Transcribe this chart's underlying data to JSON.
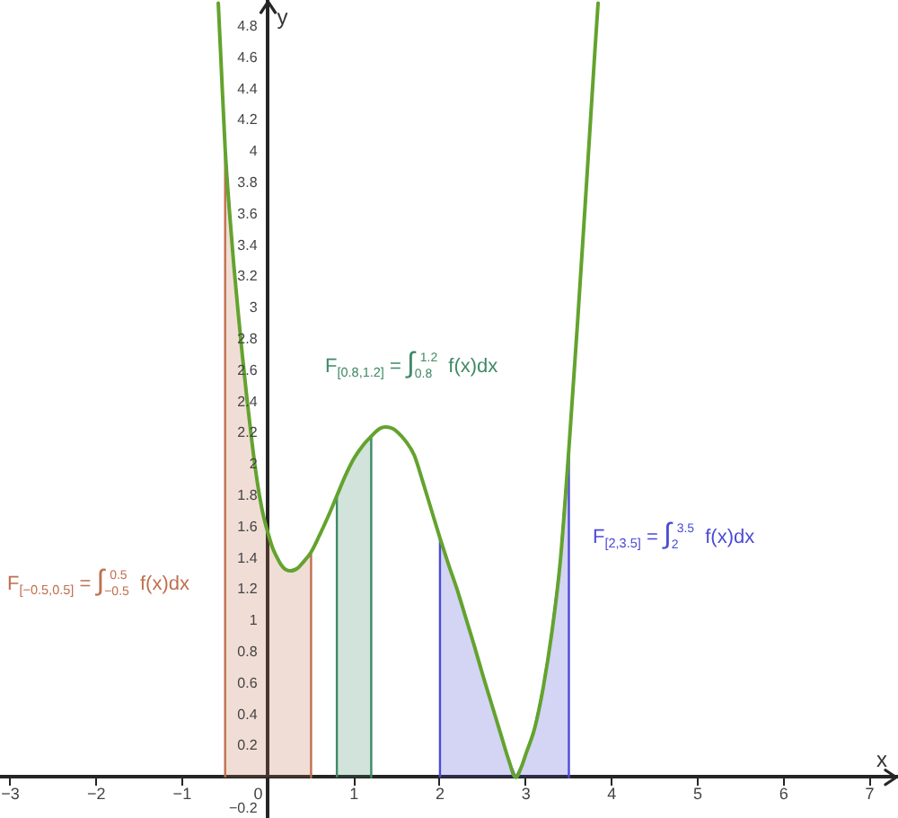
{
  "chart_data": {
    "type": "line",
    "xlabel": "x",
    "ylabel": "y",
    "xlim": [
      -3.12,
      7.33
    ],
    "ylim": [
      -0.26,
      4.97
    ],
    "xticks": [
      {
        "value": -3,
        "label": "−3"
      },
      {
        "value": -2,
        "label": "−2"
      },
      {
        "value": -1,
        "label": "−1"
      },
      0,
      1,
      2,
      3,
      4,
      5,
      6,
      7
    ],
    "yticks": [
      {
        "value": -0.2,
        "label": "−0.2"
      },
      0.2,
      0.4,
      0.6,
      0.8,
      1,
      1.2,
      1.4,
      1.6,
      1.8,
      2,
      2.2,
      2.4,
      2.6,
      2.8,
      3,
      3.2,
      3.4,
      3.6,
      3.8,
      4,
      4.2,
      4.4,
      4.6,
      4.8
    ],
    "series": [
      {
        "type": "area",
        "color": "#c0704f",
        "x": [
          -0.5,
          -0.5,
          -0.45,
          -0.4,
          -0.35,
          -0.3,
          -0.25,
          -0.2,
          -0.15,
          -0.1,
          -0.05,
          0,
          0.05,
          0.1,
          0.15,
          0.2,
          0.26,
          0.35,
          0.4,
          0.5,
          0.5
        ],
        "values": [
          0,
          4.02,
          3.62,
          3.28,
          2.98,
          2.7,
          2.44,
          2.2,
          1.98,
          1.8,
          1.66,
          1.56,
          1.47,
          1.41,
          1.36,
          1.33,
          1.32,
          1.34,
          1.37,
          1.44,
          0
        ]
      },
      {
        "type": "area",
        "color": "#3f8a66",
        "x": [
          0.8,
          0.8,
          0.9,
          1,
          1.1,
          1.2,
          1.2
        ],
        "values": [
          0,
          1.8,
          1.93,
          2.04,
          2.12,
          2.18,
          0
        ]
      },
      {
        "type": "area",
        "color": "#4b4bd6",
        "x": [
          2,
          2,
          2.1,
          2.2,
          2.3,
          2.4,
          2.5,
          2.6,
          2.7,
          2.8,
          2.88,
          2.95,
          3,
          3.1,
          3.2,
          3.3,
          3.4,
          3.5,
          3.5
        ],
        "values": [
          0,
          1.53,
          1.36,
          1.2,
          1.02,
          0.84,
          0.65,
          0.47,
          0.29,
          0.11,
          0,
          0.07,
          0.15,
          0.31,
          0.57,
          0.92,
          1.38,
          2.1,
          0
        ]
      },
      {
        "color": "#63a32e",
        "x": [
          -0.58,
          -0.55,
          -0.5,
          -0.45,
          -0.4,
          -0.35,
          -0.3,
          -0.25,
          -0.2,
          -0.15,
          -0.1,
          -0.05,
          0,
          0.05,
          0.1,
          0.15,
          0.2,
          0.26,
          0.35,
          0.4,
          0.5,
          0.6,
          0.7,
          0.8,
          0.9,
          1,
          1.1,
          1.2,
          1.3,
          1.37,
          1.45,
          1.5,
          1.6,
          1.7,
          1.8,
          1.9,
          2,
          2.1,
          2.2,
          2.3,
          2.4,
          2.5,
          2.6,
          2.7,
          2.8,
          2.88,
          2.95,
          3,
          3.1,
          3.2,
          3.3,
          3.4,
          3.5,
          3.6,
          3.7,
          3.8,
          3.84
        ],
        "values": [
          4.95,
          4.6,
          4.02,
          3.62,
          3.28,
          2.98,
          2.7,
          2.44,
          2.2,
          1.98,
          1.8,
          1.66,
          1.56,
          1.47,
          1.41,
          1.36,
          1.33,
          1.32,
          1.34,
          1.37,
          1.44,
          1.55,
          1.67,
          1.8,
          1.93,
          2.04,
          2.12,
          2.18,
          2.23,
          2.24,
          2.23,
          2.21,
          2.15,
          2.06,
          1.89,
          1.71,
          1.53,
          1.36,
          1.2,
          1.02,
          0.84,
          0.65,
          0.47,
          0.29,
          0.11,
          0,
          0.07,
          0.15,
          0.31,
          0.57,
          0.92,
          1.38,
          2.1,
          2.9,
          3.75,
          4.62,
          4.95
        ]
      }
    ],
    "annotations": [
      "F$_{[−0.5,0.5]}$ = ∫$_{−0.5}$$^{0.5}$ f(x)dx",
      "F$_{[0.8,1.2]}$ = ∫$_{0.8}$$^{1.2}$ f(x)dx",
      "F$_{[2,3.5]}$ = ∫$_{2}$$^{3.5}$ f(x)dx"
    ]
  }
}
